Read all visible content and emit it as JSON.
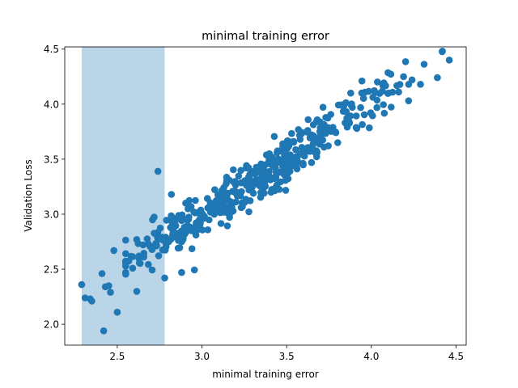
{
  "chart_data": {
    "type": "scatter",
    "title": "minimal training error",
    "xlabel": "minimal training error",
    "ylabel": "Validation Loss",
    "xlim": [
      2.19,
      4.56
    ],
    "ylim": [
      1.81,
      4.52
    ],
    "xticks": [
      2.5,
      3.0,
      3.5,
      4.0,
      4.5
    ],
    "xtick_labels": [
      "2.5",
      "3.0",
      "3.5",
      "4.0",
      "4.5"
    ],
    "yticks": [
      2.0,
      2.5,
      3.0,
      3.5,
      4.0,
      4.5
    ],
    "ytick_labels": [
      "2.0",
      "2.5",
      "3.0",
      "3.5",
      "4.0",
      "4.5"
    ],
    "grid": false,
    "shaded_region": {
      "x_start": 2.29,
      "x_end": 2.78,
      "color": "#bad4e8"
    },
    "marker_color": "#1f77b4",
    "trend": {
      "slope": 1.0,
      "intercept": 0.0,
      "noise_sd": 0.11,
      "x_min": 2.3,
      "x_max": 4.45,
      "count": 470
    },
    "notable_points": [
      {
        "x": 2.29,
        "y": 2.36
      },
      {
        "x": 2.31,
        "y": 2.24
      },
      {
        "x": 2.34,
        "y": 2.23
      },
      {
        "x": 2.35,
        "y": 2.21
      },
      {
        "x": 2.41,
        "y": 2.46
      },
      {
        "x": 2.42,
        "y": 1.94
      },
      {
        "x": 2.43,
        "y": 2.34
      },
      {
        "x": 2.45,
        "y": 2.35
      },
      {
        "x": 2.46,
        "y": 2.29
      },
      {
        "x": 2.48,
        "y": 2.67
      },
      {
        "x": 2.5,
        "y": 2.11
      },
      {
        "x": 2.74,
        "y": 3.39
      },
      {
        "x": 2.78,
        "y": 2.42
      },
      {
        "x": 2.82,
        "y": 3.18
      },
      {
        "x": 4.39,
        "y": 4.24
      },
      {
        "x": 4.46,
        "y": 4.4
      },
      {
        "x": 4.19,
        "y": 4.25
      },
      {
        "x": 4.29,
        "y": 4.18
      },
      {
        "x": 2.88,
        "y": 2.47
      },
      {
        "x": 4.22,
        "y": 4.03
      }
    ]
  }
}
